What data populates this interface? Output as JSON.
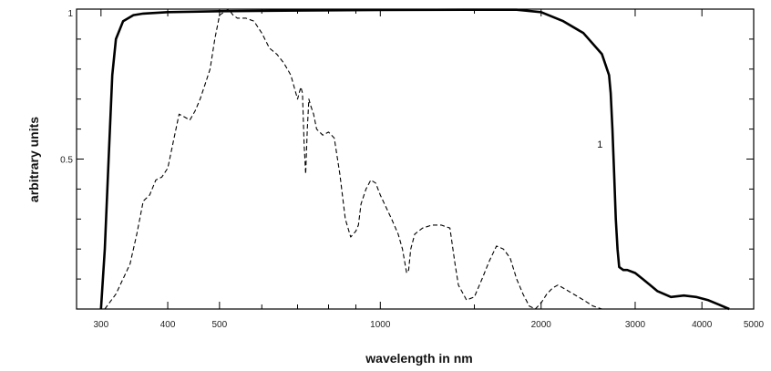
{
  "chart_data": {
    "type": "line",
    "xscale": "log",
    "xlim": [
      270,
      5000
    ],
    "ylim": [
      0,
      1
    ],
    "grid": false,
    "xlabel": "wavelength in nm",
    "ylabel": "arbitrary units",
    "xticks": [
      {
        "value": 300,
        "label": "300"
      },
      {
        "value": 400,
        "label": "400"
      },
      {
        "value": 500,
        "label": "500"
      },
      {
        "value": 1000,
        "label": "1000"
      },
      {
        "value": 2000,
        "label": "2000"
      },
      {
        "value": 3000,
        "label": "3000"
      },
      {
        "value": 4000,
        "label": "4000"
      },
      {
        "value": 5000,
        "label": "5000"
      }
    ],
    "yticks": [
      {
        "value": 0.5,
        "label": "0.5"
      },
      {
        "value": 1,
        "label": "1"
      }
    ],
    "series": [
      {
        "style": "solid",
        "color": "#000000",
        "x": [
          300,
          305,
          310,
          315,
          320,
          330,
          345,
          360,
          400,
          500,
          700,
          1000,
          1500,
          1800,
          2000,
          2200,
          2400,
          2600,
          2680,
          2700,
          2720,
          2740,
          2760,
          2780,
          2800,
          2850,
          2900,
          3000,
          3100,
          3200,
          3300,
          3500,
          3700,
          3900,
          4100,
          4300,
          4500
        ],
        "y": [
          0.0,
          0.2,
          0.5,
          0.78,
          0.9,
          0.96,
          0.98,
          0.985,
          0.99,
          0.993,
          0.995,
          0.997,
          0.998,
          0.998,
          0.99,
          0.96,
          0.92,
          0.85,
          0.78,
          0.72,
          0.6,
          0.45,
          0.3,
          0.2,
          0.14,
          0.13,
          0.13,
          0.12,
          0.1,
          0.08,
          0.06,
          0.04,
          0.045,
          0.04,
          0.03,
          0.015,
          0.0
        ]
      },
      {
        "style": "dashed",
        "color": "#000000",
        "x": [
          305,
          320,
          340,
          350,
          360,
          370,
          380,
          390,
          400,
          410,
          420,
          430,
          440,
          450,
          460,
          470,
          480,
          490,
          500,
          510,
          520,
          530,
          540,
          560,
          580,
          600,
          620,
          640,
          660,
          680,
          700,
          710,
          715,
          720,
          725,
          730,
          735,
          740,
          750,
          760,
          780,
          800,
          820,
          840,
          860,
          880,
          900,
          910,
          920,
          940,
          960,
          980,
          1000,
          1050,
          1080,
          1100,
          1120,
          1130,
          1140,
          1160,
          1200,
          1250,
          1300,
          1350,
          1380,
          1400,
          1450,
          1500,
          1550,
          1600,
          1650,
          1700,
          1750,
          1800,
          1850,
          1900,
          1950,
          2000,
          2050,
          2100,
          2150,
          2200,
          2300,
          2400,
          2500,
          2600
        ],
        "y": [
          0.0,
          0.05,
          0.15,
          0.25,
          0.36,
          0.38,
          0.43,
          0.44,
          0.47,
          0.56,
          0.65,
          0.64,
          0.63,
          0.66,
          0.7,
          0.75,
          0.8,
          0.9,
          0.98,
          0.99,
          1.0,
          0.98,
          0.97,
          0.97,
          0.96,
          0.92,
          0.87,
          0.85,
          0.82,
          0.78,
          0.7,
          0.74,
          0.72,
          0.55,
          0.45,
          0.6,
          0.7,
          0.68,
          0.65,
          0.6,
          0.58,
          0.59,
          0.57,
          0.45,
          0.3,
          0.24,
          0.26,
          0.28,
          0.35,
          0.4,
          0.43,
          0.42,
          0.38,
          0.3,
          0.25,
          0.2,
          0.12,
          0.13,
          0.2,
          0.25,
          0.27,
          0.28,
          0.28,
          0.27,
          0.15,
          0.08,
          0.03,
          0.04,
          0.1,
          0.16,
          0.21,
          0.2,
          0.17,
          0.1,
          0.05,
          0.01,
          0.0,
          0.02,
          0.05,
          0.07,
          0.08,
          0.07,
          0.05,
          0.03,
          0.01,
          0.0
        ]
      }
    ],
    "annotations": [
      {
        "text": "1",
        "x": 2680,
        "y": 0.55
      }
    ]
  }
}
